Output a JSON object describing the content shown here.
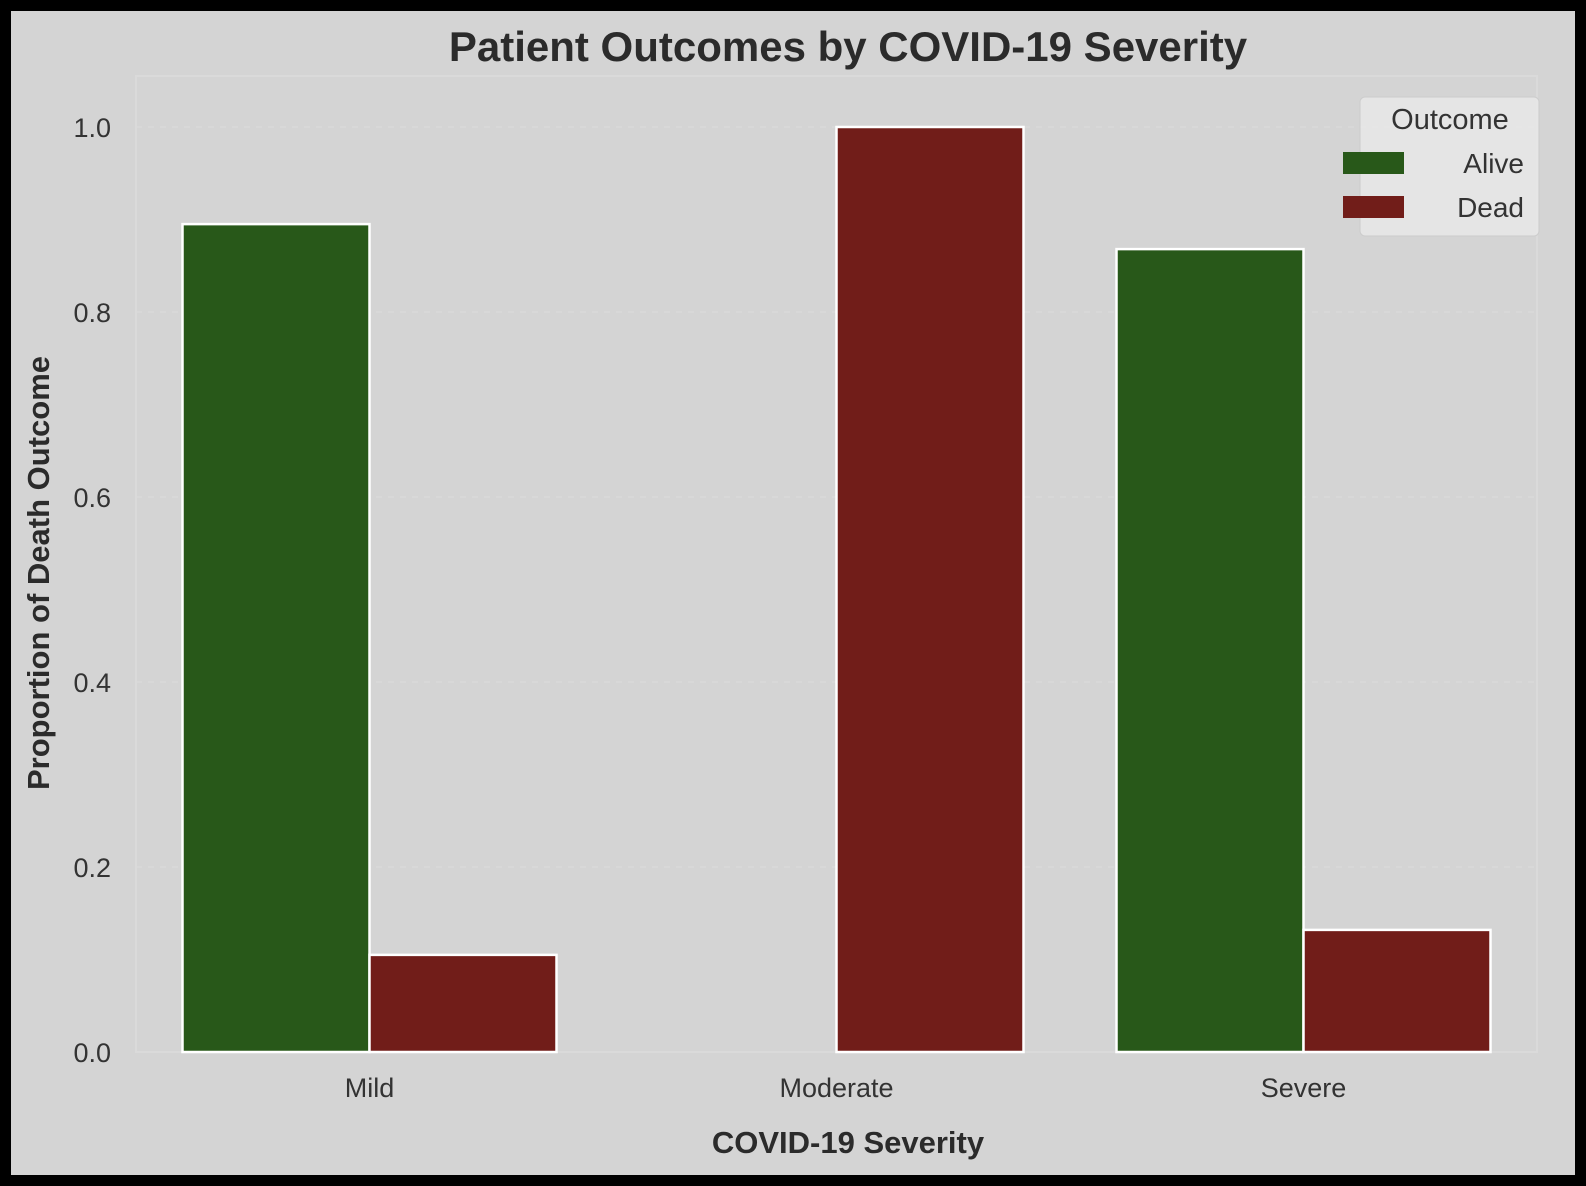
{
  "chart_data": {
    "type": "bar",
    "title": "Patient Outcomes by COVID-19 Severity",
    "xlabel": "COVID-19 Severity",
    "ylabel": "Proportion of Death Outcome",
    "categories": [
      "Mild",
      "Moderate",
      "Severe"
    ],
    "series": [
      {
        "name": "Alive",
        "color": "#285819",
        "values": [
          0.895,
          0.0,
          0.868
        ]
      },
      {
        "name": "Dead",
        "color": "#711d19",
        "values": [
          0.105,
          1.0,
          0.132
        ]
      }
    ],
    "ylim": [
      0,
      1.05
    ],
    "yticks": [
      "0.0",
      "0.2",
      "0.4",
      "0.6",
      "0.8",
      "1.0"
    ],
    "ytick_values": [
      0,
      0.2,
      0.4,
      0.6,
      0.8,
      1.0
    ],
    "legend": {
      "title": "Outcome",
      "position": "top-right"
    },
    "grid": true,
    "colors": {
      "background": "#d4d4d4",
      "frame": "#000000",
      "bar_edge": "#ffffff",
      "grid": "#dadada",
      "text": "#2b2b2b"
    }
  }
}
